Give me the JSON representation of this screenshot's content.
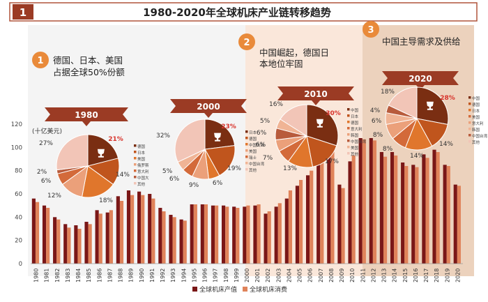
{
  "header": {
    "badge": "1",
    "title": "1980-2020年全球机床产业链转移趋势"
  },
  "colors": {
    "production": "#7a1717",
    "consumption": "#e0835a",
    "phase2_bg": "#fae7da",
    "phase3_bg": "#ecd2bd",
    "badge": "#e98a3a",
    "title_bar": "#b0543a",
    "arrow": "#9b3b24"
  },
  "phases": [
    {
      "num": "1",
      "text": [
        "德国、日本、美国",
        "占据全球50%份额"
      ]
    },
    {
      "num": "2",
      "text": [
        "中国崛起，德国日",
        "本地位牢固"
      ]
    },
    {
      "num": "3",
      "text": [
        "中国主导需求及供给"
      ]
    }
  ],
  "pies": [
    {
      "year": "1980",
      "slices": [
        21,
        14,
        18,
        12,
        6,
        2,
        27
      ],
      "slice_labels": [
        "21%",
        "14%",
        "18%",
        "12%",
        "6%",
        "2%",
        "27%"
      ],
      "legend": [
        "德国",
        "日本",
        "美国",
        "俄罗斯",
        "意大利",
        "中国大",
        "其他"
      ]
    },
    {
      "year": "2000",
      "slices": [
        23,
        19,
        6,
        9,
        6,
        5,
        32
      ],
      "slice_labels": [
        "23%",
        "19%",
        "6%",
        "9%",
        "6%",
        "5%",
        "32%"
      ],
      "legend": [
        "日本",
        "德国",
        "中国大陆",
        "美国",
        "瑞士",
        "中国台湾",
        "其他"
      ]
    },
    {
      "year": "2010",
      "slices": [
        30,
        17,
        13,
        7,
        6,
        6,
        5,
        16
      ],
      "slice_labels": [
        "30%",
        "17%",
        "13%",
        "7%",
        "6%",
        "6%",
        "5%",
        "16%"
      ],
      "legend": [
        "中国",
        "日本",
        "德国",
        "意大利",
        "韩国",
        "中国台湾",
        "美国",
        "其他"
      ]
    },
    {
      "year": "2020",
      "slices": [
        28,
        14,
        14,
        8,
        8,
        6,
        4,
        18
      ],
      "slice_labels": [
        "28%",
        "14%",
        "14%",
        "8%",
        "8%",
        "6%",
        "4%",
        "18%"
      ],
      "legend": [
        "中国",
        "德国",
        "日本",
        "美国",
        "意大利",
        "韩国",
        "中国台湾",
        "其他"
      ]
    }
  ],
  "chart_data": {
    "type": "bar",
    "ylabel": "(十亿美元)",
    "ylim": [
      0,
      120
    ],
    "yticks": [
      "0",
      "20",
      "40",
      "60",
      "80",
      "100",
      "120"
    ],
    "categories": [
      "1980",
      "1981",
      "1982",
      "1983",
      "1984",
      "1985",
      "1986",
      "1987",
      "1988",
      "1989",
      "1990",
      "1991",
      "1992",
      "1993",
      "1994",
      "1995",
      "1996",
      "1997",
      "1998",
      "1999",
      "2000",
      "2001",
      "2002",
      "2003",
      "2004",
      "2005",
      "2006",
      "2007",
      "2008",
      "2009",
      "2010",
      "2011",
      "2012",
      "2013",
      "2014",
      "2015",
      "2016",
      "2017",
      "2018",
      "2019",
      "2020"
    ],
    "series": [
      {
        "name": "全球机床产值",
        "values": [
          56,
          50,
          40,
          34,
          33,
          36,
          46,
          44,
          58,
          63,
          62,
          60,
          48,
          42,
          38,
          51,
          51,
          50,
          50,
          49,
          49,
          50,
          43,
          49,
          56,
          67,
          76,
          90,
          104,
          68,
          88,
          108,
          108,
          96,
          96,
          87,
          85,
          94,
          98,
          85,
          68
        ]
      },
      {
        "name": "全球机床消费",
        "values": [
          53,
          48,
          38,
          31,
          30,
          34,
          43,
          46,
          54,
          59,
          59,
          56,
          45,
          40,
          37,
          51,
          51,
          50,
          49,
          48,
          50,
          51,
          45,
          52,
          63,
          72,
          80,
          93,
          107,
          65,
          93,
          107,
          106,
          92,
          93,
          84,
          83,
          91,
          96,
          84,
          67
        ]
      }
    ],
    "legend_position": "bottom",
    "grid": false
  }
}
